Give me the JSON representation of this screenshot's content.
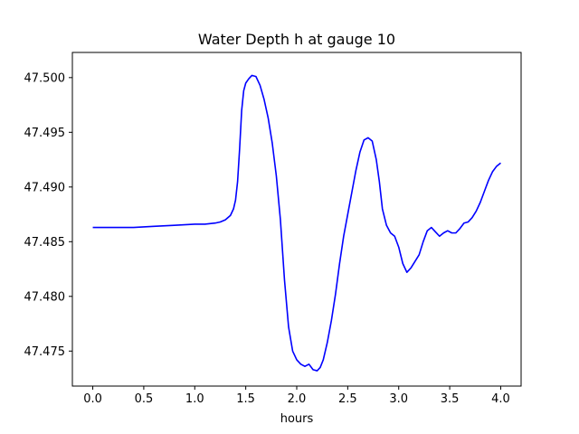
{
  "chart_data": {
    "type": "line",
    "title": "Water Depth h at gauge 10",
    "xlabel": "hours",
    "ylabel": "",
    "xlim": [
      -0.2,
      4.2
    ],
    "ylim": [
      47.4718,
      47.5023
    ],
    "xticks": [
      0.0,
      0.5,
      1.0,
      1.5,
      2.0,
      2.5,
      3.0,
      3.5,
      4.0
    ],
    "xtick_labels": [
      "0.0",
      "0.5",
      "1.0",
      "1.5",
      "2.0",
      "2.5",
      "3.0",
      "3.5",
      "4.0"
    ],
    "yticks": [
      47.475,
      47.48,
      47.485,
      47.49,
      47.495,
      47.5
    ],
    "ytick_labels": [
      "47.475",
      "47.480",
      "47.485",
      "47.490",
      "47.495",
      "47.500"
    ],
    "grid": false,
    "line_color": "#0000ff",
    "series": [
      {
        "x": [
          0.0,
          0.2,
          0.4,
          0.6,
          0.8,
          1.0,
          1.1,
          1.2,
          1.25,
          1.3,
          1.35,
          1.38,
          1.4,
          1.42,
          1.44,
          1.46,
          1.48,
          1.5,
          1.53,
          1.56,
          1.6,
          1.64,
          1.68,
          1.72,
          1.76,
          1.8,
          1.84,
          1.88,
          1.92,
          1.96,
          2.0,
          2.04,
          2.08,
          2.12,
          2.16,
          2.2,
          2.23,
          2.26,
          2.3,
          2.34,
          2.38,
          2.42,
          2.46,
          2.5,
          2.54,
          2.58,
          2.62,
          2.66,
          2.7,
          2.74,
          2.78,
          2.81,
          2.84,
          2.88,
          2.92,
          2.96,
          3.0,
          3.04,
          3.08,
          3.12,
          3.16,
          3.2,
          3.24,
          3.28,
          3.32,
          3.36,
          3.4,
          3.44,
          3.48,
          3.52,
          3.56,
          3.6,
          3.64,
          3.68,
          3.72,
          3.76,
          3.8,
          3.84,
          3.88,
          3.92,
          3.96,
          4.0
        ],
        "y": [
          47.4863,
          47.4863,
          47.4863,
          47.4864,
          47.4865,
          47.4866,
          47.4866,
          47.4867,
          47.4868,
          47.487,
          47.4874,
          47.488,
          47.4888,
          47.4905,
          47.4935,
          47.497,
          47.4988,
          47.4995,
          47.4999,
          47.5002,
          47.5001,
          47.4993,
          47.498,
          47.4963,
          47.494,
          47.491,
          47.487,
          47.4815,
          47.4772,
          47.475,
          47.4742,
          47.4738,
          47.4736,
          47.4738,
          47.4733,
          47.4732,
          47.4735,
          47.4742,
          47.4758,
          47.4778,
          47.4802,
          47.483,
          47.4855,
          47.4875,
          47.4895,
          47.4915,
          47.4932,
          47.4943,
          47.4945,
          47.4942,
          47.4925,
          47.4905,
          47.488,
          47.4865,
          47.4858,
          47.4855,
          47.4845,
          47.483,
          47.4822,
          47.4826,
          47.4832,
          47.4838,
          47.485,
          47.486,
          47.4863,
          47.4859,
          47.4855,
          47.4858,
          47.486,
          47.4858,
          47.4858,
          47.4862,
          47.4867,
          47.4868,
          47.4872,
          47.4878,
          47.4886,
          47.4896,
          47.4906,
          47.4914,
          47.4919,
          47.4922
        ]
      }
    ]
  }
}
